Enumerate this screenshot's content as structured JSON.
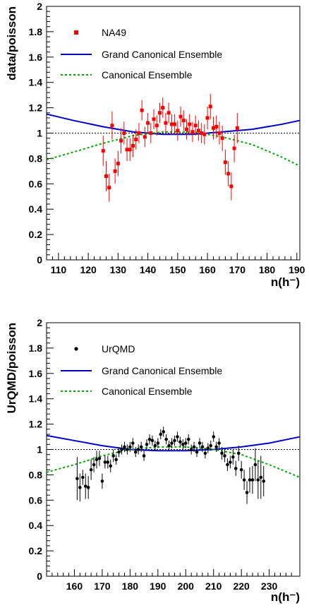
{
  "colors": {
    "data_na49": "#ff0000",
    "data_urqmd": "#000000",
    "grand_canonical": "#0000cc",
    "canonical": "#00aa00",
    "reference": "#000000"
  },
  "chart_data": [
    {
      "type": "scatter",
      "ylabel": "data/poisson",
      "xlabel": "n(h⁻)",
      "xlim": [
        106,
        191
      ],
      "ylim": [
        0,
        2
      ],
      "xticks": [
        110,
        120,
        130,
        140,
        150,
        160,
        170,
        180,
        190
      ],
      "yticks": [
        0,
        0.2,
        0.4,
        0.6,
        0.8,
        1,
        1.2,
        1.4,
        1.6,
        1.8,
        2
      ],
      "ytick_labels": [
        "0",
        "0.2",
        "0.4",
        "0.6",
        "0.8",
        "1",
        "1.2",
        "1.4",
        "1.6",
        "1.8",
        "2"
      ],
      "reference_line": 1,
      "legend": [
        "NA49",
        "Grand Canonical Ensemble",
        "Canonical Ensemble"
      ],
      "legend_position": "top-left",
      "series": [
        {
          "name": "NA49",
          "kind": "points-with-errors",
          "marker": "square",
          "x": [
            125,
            126,
            127,
            128,
            129,
            130,
            131,
            132,
            133,
            134,
            135,
            136,
            137,
            138,
            139,
            140,
            141,
            142,
            143,
            144,
            145,
            146,
            147,
            148,
            149,
            150,
            151,
            152,
            153,
            154,
            155,
            156,
            157,
            158,
            159,
            160,
            161,
            162,
            163,
            164,
            165,
            166,
            167,
            168,
            169,
            170
          ],
          "y": [
            0.86,
            0.66,
            0.57,
            1.06,
            0.7,
            0.76,
            0.94,
            1.0,
            0.87,
            0.87,
            0.9,
            0.95,
            1.0,
            1.18,
            0.97,
            1.08,
            1.0,
            1.11,
            1.06,
            1.16,
            1.2,
            1.08,
            1.16,
            1.07,
            1.07,
            1.02,
            1.13,
            1.1,
            1.03,
            1.07,
            1.01,
            1.06,
            1.02,
            1.0,
            0.99,
            1.12,
            1.21,
            1.04,
            1.05,
            1.0,
            0.96,
            0.77,
            0.68,
            0.58,
            0.88,
            1.04
          ],
          "err": [
            0.12,
            0.12,
            0.11,
            0.11,
            0.1,
            0.1,
            0.1,
            0.09,
            0.09,
            0.09,
            0.09,
            0.08,
            0.08,
            0.08,
            0.08,
            0.08,
            0.08,
            0.08,
            0.08,
            0.08,
            0.08,
            0.08,
            0.08,
            0.08,
            0.08,
            0.08,
            0.08,
            0.08,
            0.08,
            0.08,
            0.08,
            0.08,
            0.08,
            0.08,
            0.08,
            0.09,
            0.1,
            0.09,
            0.09,
            0.09,
            0.1,
            0.1,
            0.1,
            0.11,
            0.11,
            0.12
          ]
        },
        {
          "name": "Grand Canonical Ensemble",
          "kind": "line",
          "style": "solid",
          "x": [
            106,
            115,
            125,
            135,
            145,
            150,
            155,
            165,
            175,
            185,
            191
          ],
          "y": [
            1.15,
            1.1,
            1.05,
            1.01,
            0.99,
            0.99,
            0.99,
            1.01,
            1.03,
            1.07,
            1.1
          ]
        },
        {
          "name": "Canonical Ensemble",
          "kind": "line",
          "style": "dotted",
          "x": [
            106,
            115,
            125,
            135,
            145,
            150,
            155,
            165,
            175,
            185,
            191
          ],
          "y": [
            0.79,
            0.85,
            0.92,
            0.98,
            1.01,
            1.01,
            1.01,
            0.97,
            0.91,
            0.81,
            0.74
          ]
        }
      ]
    },
    {
      "type": "scatter",
      "ylabel": "UrQMD/poisson",
      "xlabel": "n(h⁻)",
      "xlim": [
        150,
        241
      ],
      "ylim": [
        0,
        2
      ],
      "xticks": [
        160,
        170,
        180,
        190,
        200,
        210,
        220,
        230
      ],
      "yticks": [
        0,
        0.2,
        0.4,
        0.6,
        0.8,
        1,
        1.2,
        1.4,
        1.6,
        1.8,
        2
      ],
      "ytick_labels": [
        "0",
        "0.2",
        "0.4",
        "0.6",
        "0.8",
        "1",
        "1.2",
        "1.4",
        "1.6",
        "1.8",
        "2"
      ],
      "reference_line": 1,
      "legend": [
        "UrQMD",
        "Grand Canonical Ensemble",
        "Canonical Ensemble"
      ],
      "legend_position": "top-left",
      "series": [
        {
          "name": "UrQMD",
          "kind": "points-with-errors",
          "marker": "circle",
          "x": [
            161,
            162,
            163,
            164,
            165,
            166,
            167,
            168,
            169,
            170,
            171,
            172,
            173,
            174,
            175,
            176,
            177,
            178,
            179,
            180,
            181,
            182,
            183,
            184,
            185,
            186,
            187,
            188,
            189,
            190,
            191,
            192,
            193,
            194,
            195,
            196,
            197,
            198,
            199,
            200,
            201,
            202,
            203,
            204,
            205,
            206,
            207,
            208,
            209,
            210,
            211,
            212,
            213,
            214,
            215,
            216,
            217,
            218,
            219,
            220,
            221,
            222,
            223,
            224,
            225,
            226,
            227,
            228
          ],
          "y": [
            0.77,
            0.7,
            0.78,
            0.71,
            0.7,
            0.84,
            0.88,
            0.92,
            0.93,
            0.75,
            0.9,
            0.9,
            0.87,
            0.95,
            0.92,
            0.98,
            1.0,
            1.02,
            1.0,
            1.02,
            1.05,
            0.98,
            1.0,
            1.02,
            0.95,
            1.04,
            1.08,
            1.07,
            1.03,
            1.05,
            1.12,
            1.14,
            1.08,
            1.03,
            1.05,
            1.07,
            1.1,
            1.06,
            1.04,
            1.05,
            1.08,
            1.0,
            1.02,
            0.98,
            1.05,
            1.02,
            0.97,
            1.01,
            1.03,
            1.1,
            1.02,
            1.05,
            0.97,
            0.95,
            0.88,
            0.9,
            0.94,
            0.85,
            0.97,
            0.84,
            0.76,
            0.66,
            0.76,
            0.76,
            0.88,
            0.76,
            0.78,
            0.75
          ],
          "err": [
            0.17,
            0.11,
            0.06,
            0.1,
            0.09,
            0.08,
            0.06,
            0.07,
            0.06,
            0.06,
            0.05,
            0.05,
            0.05,
            0.05,
            0.04,
            0.04,
            0.04,
            0.04,
            0.04,
            0.04,
            0.04,
            0.04,
            0.04,
            0.04,
            0.04,
            0.04,
            0.04,
            0.04,
            0.04,
            0.04,
            0.04,
            0.04,
            0.04,
            0.04,
            0.04,
            0.04,
            0.04,
            0.04,
            0.04,
            0.04,
            0.04,
            0.04,
            0.04,
            0.04,
            0.04,
            0.04,
            0.04,
            0.04,
            0.04,
            0.04,
            0.04,
            0.04,
            0.05,
            0.05,
            0.05,
            0.05,
            0.06,
            0.06,
            0.06,
            0.07,
            0.08,
            0.09,
            0.1,
            0.11,
            0.13,
            0.15,
            0.17,
            0.12
          ]
        },
        {
          "name": "Grand Canonical Ensemble",
          "kind": "line",
          "style": "solid",
          "x": [
            150,
            160,
            170,
            180,
            190,
            195,
            200,
            210,
            220,
            230,
            241
          ],
          "y": [
            1.11,
            1.07,
            1.03,
            1.0,
            0.99,
            0.99,
            0.99,
            1.0,
            1.02,
            1.05,
            1.1
          ]
        },
        {
          "name": "Canonical Ensemble",
          "kind": "line",
          "style": "dotted",
          "x": [
            150,
            160,
            170,
            180,
            190,
            195,
            200,
            210,
            220,
            230,
            241
          ],
          "y": [
            0.82,
            0.88,
            0.95,
            1.0,
            1.02,
            1.02,
            1.02,
            1.0,
            0.96,
            0.88,
            0.78
          ]
        }
      ]
    }
  ]
}
